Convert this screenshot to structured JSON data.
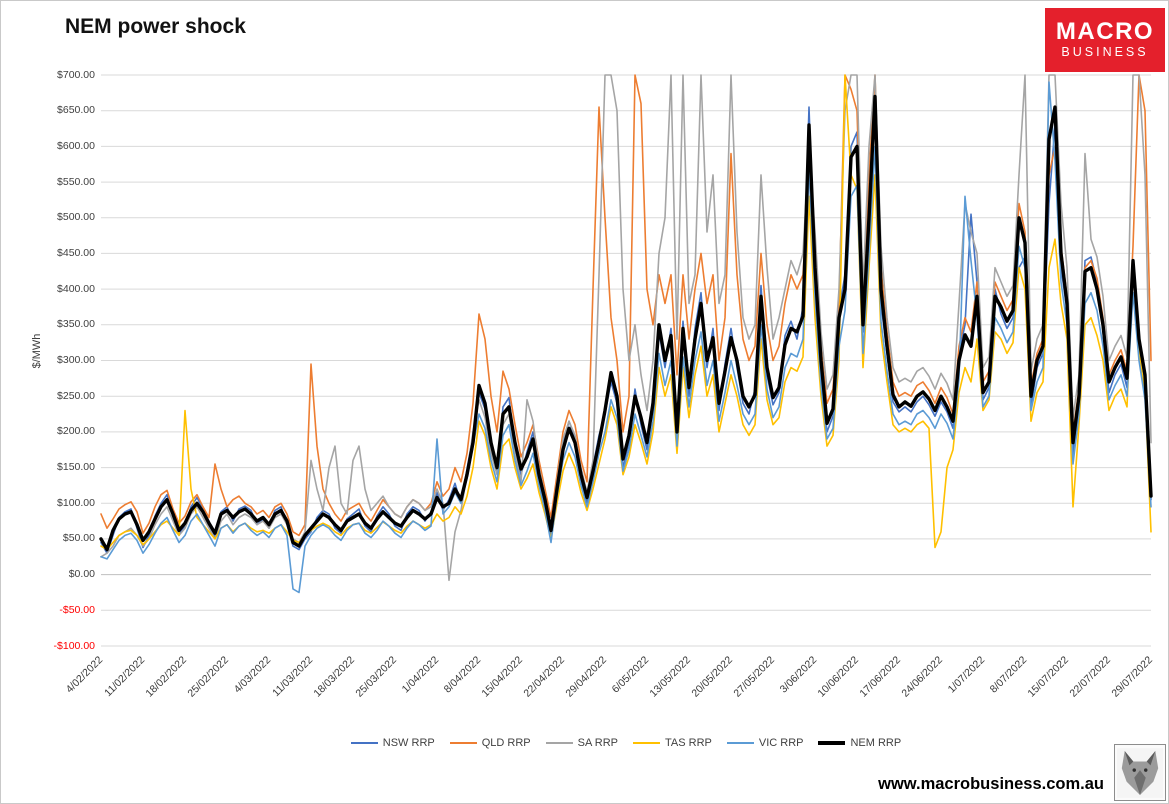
{
  "title": "NEM power shock",
  "logo": {
    "line1": "MACRO",
    "line2": "BUSINESS",
    "bg_color": "#E4202C"
  },
  "footer": {
    "url": "www.macrobusiness.com.au"
  },
  "chart_data": {
    "type": "line",
    "title": "NEM power shock",
    "xlabel": "",
    "ylabel": "$/MWh",
    "ylim": [
      -100,
      700
    ],
    "y_tick_step": 50,
    "grid": true,
    "grid_color": "#D9D9D9",
    "zero_line_color": "#BFBFBF",
    "axis_text_color": "#404040",
    "negative_tick_color": "#FF0000",
    "legend_position": "bottom",
    "n_points": 176,
    "x_tick_every": 7,
    "y_tick_labels": [
      "$700.00",
      "$650.00",
      "$600.00",
      "$550.00",
      "$500.00",
      "$450.00",
      "$400.00",
      "$350.00",
      "$300.00",
      "$250.00",
      "$200.00",
      "$150.00",
      "$100.00",
      "$50.00",
      "$0.00",
      "-$50.00",
      "-$100.00"
    ],
    "x_tick_labels": [
      "4/02/2022",
      "11/02/2022",
      "18/02/2022",
      "25/02/2022",
      "4/03/2022",
      "11/03/2022",
      "18/03/2022",
      "25/03/2022",
      "1/04/2022",
      "8/04/2022",
      "15/04/2022",
      "22/04/2022",
      "29/04/2022",
      "6/05/2022",
      "13/05/2022",
      "20/05/2022",
      "27/05/2022",
      "3/06/2022",
      "10/06/2022",
      "17/06/2022",
      "24/06/2022",
      "1/07/2022",
      "8/07/2022",
      "15/07/2022",
      "22/07/2022",
      "29/07/2022"
    ],
    "series": [
      {
        "name": "NSW RRP",
        "color": "#4472C4",
        "width": 1.6,
        "values": [
          45,
          30,
          55,
          80,
          88,
          92,
          65,
          38,
          55,
          82,
          100,
          112,
          80,
          58,
          68,
          95,
          108,
          92,
          68,
          52,
          88,
          95,
          75,
          92,
          96,
          90,
          70,
          78,
          65,
          90,
          95,
          70,
          40,
          35,
          50,
          60,
          80,
          90,
          85,
          65,
          58,
          78,
          85,
          92,
          68,
          60,
          82,
          95,
          85,
          68,
          62,
          85,
          95,
          90,
          75,
          88,
          115,
          90,
          105,
          128,
          100,
          148,
          195,
          255,
          232,
          175,
          142,
          235,
          248,
          175,
          140,
          172,
          200,
          132,
          98,
          55,
          128,
          182,
          215,
          192,
          132,
          100,
          152,
          195,
          225,
          270,
          240,
          150,
          185,
          260,
          210,
          175,
          250,
          340,
          290,
          345,
          190,
          355,
          250,
          345,
          395,
          290,
          345,
          230,
          295,
          345,
          290,
          240,
          225,
          260,
          405,
          280,
          238,
          255,
          335,
          355,
          330,
          375,
          655,
          415,
          285,
          200,
          222,
          370,
          420,
          600,
          620,
          340,
          520,
          640,
          380,
          310,
          242,
          228,
          235,
          228,
          242,
          250,
          238,
          222,
          242,
          228,
          205,
          310,
          350,
          505,
          410,
          245,
          262,
          400,
          365,
          345,
          360,
          430,
          445,
          235,
          290,
          310,
          520,
          630,
          430,
          370,
          170,
          240,
          440,
          445,
          410,
          340,
          255,
          280,
          295,
          262,
          430,
          320,
          270,
          105
        ]
      },
      {
        "name": "QLD RRP",
        "color": "#ED7D31",
        "width": 1.6,
        "values": [
          85,
          65,
          78,
          92,
          98,
          102,
          88,
          58,
          72,
          95,
          112,
          118,
          92,
          72,
          82,
          102,
          112,
          95,
          80,
          155,
          120,
          95,
          105,
          110,
          100,
          95,
          85,
          90,
          80,
          95,
          100,
          85,
          60,
          55,
          70,
          295,
          180,
          120,
          100,
          85,
          75,
          90,
          95,
          100,
          85,
          75,
          90,
          105,
          95,
          85,
          80,
          95,
          105,
          100,
          90,
          100,
          130,
          110,
          120,
          150,
          130,
          170,
          240,
          365,
          330,
          250,
          200,
          285,
          260,
          210,
          165,
          185,
          210,
          160,
          120,
          80,
          140,
          200,
          230,
          210,
          160,
          130,
          400,
          655,
          500,
          360,
          300,
          200,
          250,
          700,
          660,
          400,
          350,
          420,
          380,
          420,
          280,
          420,
          330,
          400,
          450,
          380,
          420,
          300,
          360,
          590,
          420,
          330,
          300,
          320,
          450,
          350,
          300,
          320,
          380,
          420,
          400,
          420,
          560,
          450,
          320,
          240,
          260,
          380,
          700,
          680,
          650,
          380,
          560,
          700,
          430,
          340,
          270,
          250,
          255,
          250,
          265,
          270,
          258,
          240,
          262,
          248,
          225,
          320,
          360,
          340,
          410,
          270,
          285,
          410,
          390,
          370,
          385,
          520,
          480,
          265,
          310,
          330,
          560,
          600,
          460,
          390,
          200,
          260,
          430,
          440,
          415,
          360,
          280,
          300,
          315,
          285,
          460,
          700,
          650,
          300
        ]
      },
      {
        "name": "SA RRP",
        "color": "#A5A5A5",
        "width": 1.6,
        "values": [
          25,
          30,
          40,
          55,
          60,
          65,
          55,
          40,
          50,
          70,
          85,
          95,
          75,
          55,
          65,
          85,
          95,
          80,
          65,
          50,
          75,
          85,
          70,
          80,
          85,
          80,
          70,
          75,
          65,
          80,
          85,
          70,
          50,
          45,
          60,
          160,
          120,
          90,
          150,
          180,
          100,
          85,
          160,
          180,
          120,
          90,
          100,
          110,
          95,
          85,
          80,
          95,
          105,
          100,
          90,
          95,
          120,
          100,
          -8,
          60,
          90,
          140,
          200,
          245,
          220,
          170,
          140,
          210,
          225,
          170,
          130,
          245,
          215,
          150,
          110,
          70,
          130,
          190,
          215,
          195,
          150,
          115,
          160,
          420,
          700,
          700,
          650,
          400,
          300,
          350,
          280,
          230,
          300,
          450,
          500,
          700,
          330,
          700,
          380,
          420,
          700,
          480,
          560,
          380,
          420,
          700,
          480,
          360,
          330,
          350,
          560,
          430,
          330,
          360,
          400,
          440,
          420,
          450,
          600,
          480,
          340,
          260,
          280,
          400,
          650,
          700,
          700,
          400,
          600,
          700,
          460,
          360,
          290,
          270,
          275,
          270,
          285,
          290,
          278,
          260,
          282,
          268,
          245,
          380,
          520,
          480,
          450,
          290,
          305,
          430,
          410,
          390,
          405,
          560,
          700,
          285,
          330,
          350,
          700,
          700,
          520,
          430,
          220,
          280,
          590,
          470,
          445,
          390,
          300,
          320,
          335,
          305,
          700,
          700,
          560,
          185
        ]
      },
      {
        "name": "TAS RRP",
        "color": "#FFC000",
        "width": 1.6,
        "values": [
          40,
          35,
          45,
          55,
          60,
          62,
          55,
          42,
          50,
          60,
          70,
          75,
          65,
          55,
          230,
          120,
          80,
          70,
          60,
          50,
          65,
          70,
          60,
          68,
          72,
          65,
          60,
          62,
          58,
          65,
          70,
          60,
          48,
          45,
          55,
          62,
          68,
          72,
          68,
          60,
          55,
          65,
          70,
          72,
          62,
          58,
          66,
          74,
          68,
          62,
          58,
          68,
          75,
          70,
          65,
          70,
          85,
          75,
          80,
          95,
          85,
          110,
          150,
          215,
          195,
          150,
          120,
          180,
          190,
          150,
          120,
          135,
          155,
          115,
          85,
          50,
          100,
          145,
          170,
          150,
          115,
          90,
          120,
          155,
          190,
          235,
          210,
          140,
          165,
          210,
          185,
          155,
          200,
          290,
          250,
          280,
          170,
          290,
          220,
          280,
          320,
          250,
          280,
          200,
          240,
          280,
          250,
          210,
          195,
          210,
          330,
          245,
          210,
          220,
          270,
          290,
          285,
          305,
          530,
          360,
          250,
          180,
          195,
          300,
          700,
          560,
          540,
          290,
          430,
          560,
          335,
          270,
          210,
          200,
          205,
          200,
          210,
          215,
          205,
          38,
          60,
          150,
          175,
          255,
          290,
          270,
          330,
          230,
          245,
          340,
          330,
          310,
          325,
          430,
          400,
          215,
          255,
          270,
          430,
          470,
          380,
          330,
          95,
          210,
          350,
          360,
          335,
          300,
          230,
          250,
          260,
          235,
          440,
          310,
          255,
          60
        ]
      },
      {
        "name": "VIC RRP",
        "color": "#5B9BD5",
        "width": 1.6,
        "values": [
          25,
          22,
          35,
          48,
          55,
          58,
          48,
          30,
          42,
          58,
          72,
          80,
          62,
          45,
          55,
          75,
          85,
          70,
          55,
          40,
          65,
          70,
          58,
          68,
          72,
          62,
          55,
          60,
          52,
          65,
          70,
          55,
          -20,
          -25,
          40,
          55,
          65,
          70,
          65,
          55,
          48,
          62,
          70,
          72,
          58,
          52,
          62,
          75,
          68,
          58,
          52,
          65,
          75,
          70,
          62,
          68,
          190,
          85,
          95,
          115,
          100,
          135,
          180,
          225,
          205,
          160,
          130,
          195,
          210,
          160,
          125,
          145,
          170,
          125,
          90,
          45,
          110,
          160,
          185,
          165,
          125,
          95,
          130,
          170,
          200,
          245,
          220,
          145,
          175,
          225,
          195,
          165,
          215,
          310,
          265,
          300,
          180,
          305,
          235,
          300,
          340,
          265,
          300,
          215,
          255,
          300,
          265,
          225,
          210,
          225,
          350,
          260,
          220,
          235,
          290,
          310,
          305,
          330,
          570,
          390,
          265,
          190,
          205,
          320,
          370,
          530,
          545,
          310,
          450,
          600,
          355,
          285,
          225,
          210,
          215,
          210,
          225,
          230,
          220,
          205,
          225,
          212,
          190,
          275,
          530,
          440,
          360,
          235,
          250,
          360,
          345,
          325,
          340,
          460,
          430,
          230,
          270,
          290,
          690,
          580,
          410,
          350,
          155,
          225,
          380,
          395,
          370,
          320,
          245,
          265,
          280,
          250,
          395,
          300,
          245,
          95
        ]
      },
      {
        "name": "NEM RRP",
        "color": "#000000",
        "width": 3.4,
        "values": [
          50,
          35,
          62,
          78,
          85,
          88,
          70,
          48,
          60,
          78,
          95,
          105,
          85,
          62,
          72,
          90,
          100,
          88,
          72,
          58,
          85,
          90,
          80,
          88,
          92,
          85,
          75,
          80,
          70,
          85,
          90,
          75,
          45,
          40,
          55,
          65,
          75,
          85,
          80,
          70,
          62,
          75,
          80,
          85,
          72,
          65,
          78,
          88,
          80,
          72,
          68,
          80,
          90,
          85,
          78,
          85,
          108,
          95,
          100,
          120,
          105,
          140,
          185,
          265,
          240,
          185,
          150,
          225,
          235,
          185,
          148,
          165,
          190,
          140,
          105,
          62,
          120,
          175,
          205,
          185,
          140,
          108,
          145,
          185,
          230,
          283,
          250,
          162,
          195,
          250,
          220,
          185,
          240,
          350,
          300,
          335,
          200,
          345,
          262,
          330,
          380,
          300,
          332,
          240,
          285,
          332,
          300,
          250,
          235,
          252,
          390,
          290,
          248,
          262,
          322,
          345,
          340,
          362,
          630,
          430,
          300,
          212,
          232,
          360,
          400,
          585,
          600,
          350,
          500,
          670,
          400,
          320,
          252,
          235,
          242,
          236,
          250,
          256,
          246,
          230,
          250,
          235,
          215,
          300,
          336,
          320,
          390,
          255,
          270,
          390,
          375,
          355,
          370,
          500,
          465,
          250,
          300,
          320,
          610,
          655,
          450,
          380,
          185,
          250,
          425,
          430,
          400,
          350,
          270,
          290,
          305,
          275,
          440,
          330,
          280,
          110
        ]
      }
    ]
  }
}
